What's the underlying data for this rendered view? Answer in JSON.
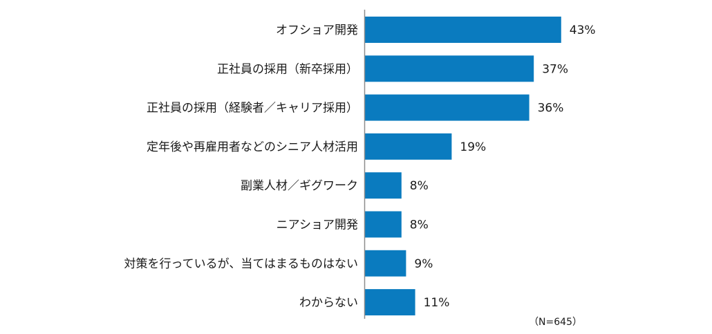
{
  "chart_data": {
    "type": "bar",
    "orientation": "horizontal",
    "categories": [
      "オフショア開発",
      "正社員の採用（新卒採用）",
      "正社員の採用（経験者／キャリア採用）",
      "定年後や再雇用者などのシニア人材活用",
      "副業人材／ギグワーク",
      "ニアショア開発",
      "対策を行っているが、当てはまるものはない",
      "わからない"
    ],
    "values": [
      43,
      37,
      36,
      19,
      8,
      8,
      9,
      11
    ],
    "value_labels": [
      "43%",
      "37%",
      "36%",
      "19%",
      "8%",
      "8%",
      "9%",
      "11%"
    ],
    "unit": "%",
    "xlim": [
      0,
      50
    ],
    "grid": false,
    "bar_color": "#0a7bbf",
    "axis_color": "#8c8c8c",
    "note": "（N=645）"
  }
}
